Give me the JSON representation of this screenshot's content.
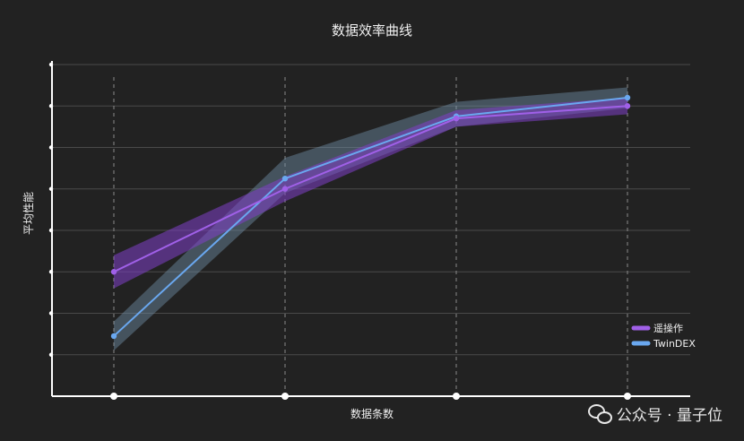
{
  "chart_data": {
    "type": "line",
    "title": "数据效率曲线",
    "xlabel": "数据条数",
    "ylabel": "平均性能",
    "x": [
      1,
      2,
      3,
      4
    ],
    "ylim": [
      0,
      8
    ],
    "yticks": [
      1,
      2,
      3,
      4,
      5,
      6,
      7,
      8
    ],
    "grid": "horizontal",
    "legend_position": "bottom-right",
    "series": [
      {
        "name": "遥操作",
        "color": "#a060e8",
        "values": [
          3.0,
          5.0,
          6.7,
          7.0
        ],
        "lower": [
          2.6,
          4.7,
          6.5,
          6.8
        ],
        "upper": [
          3.4,
          5.3,
          6.9,
          7.2
        ]
      },
      {
        "name": "TwinDEX",
        "color": "#6aa8f0",
        "values": [
          1.45,
          5.25,
          6.75,
          7.2
        ],
        "lower": [
          1.1,
          4.9,
          6.5,
          6.95
        ],
        "upper": [
          1.8,
          5.75,
          7.1,
          7.45
        ]
      }
    ]
  },
  "watermark": {
    "icon": "wechat-icon",
    "text": "公众号 · 量子位"
  }
}
